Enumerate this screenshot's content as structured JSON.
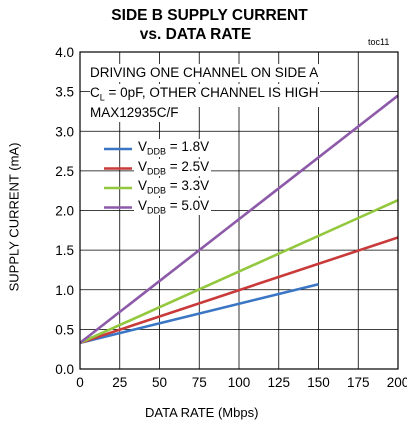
{
  "chart_data": {
    "type": "line",
    "title_line1": "SIDE B SUPPLY CURRENT",
    "title_line2": "vs. DATA RATE",
    "code": "toc11",
    "xlabel": "DATA RATE (Mbps)",
    "ylabel": "SUPPLY CURRENT (mA)",
    "xlim": [
      0,
      200
    ],
    "ylim": [
      0.0,
      4.0
    ],
    "x_ticks": [
      "0",
      "25",
      "50",
      "75",
      "100",
      "125",
      "150",
      "175",
      "200"
    ],
    "y_ticks": [
      "0.0",
      "0.5",
      "1.0",
      "1.5",
      "2.0",
      "2.5",
      "3.0",
      "3.5",
      "4.0"
    ],
    "grid": true,
    "annotation": {
      "line1": "DRIVING ONE CHANNEL ON SIDE A",
      "line2_prefix": "C",
      "line2_sub": "L",
      "line2_suffix": " = 0pF, OTHER CHANNEL IS HIGH",
      "line3": "MAX12935C/F"
    },
    "legend_prefix": "V",
    "legend_sub": "DDB",
    "series": [
      {
        "name": "= 1.8V",
        "color": "#3a76c4",
        "x": [
          0,
          150
        ],
        "y": [
          0.33,
          1.07
        ]
      },
      {
        "name": "= 2.5V",
        "color": "#c93a3a",
        "x": [
          0,
          200
        ],
        "y": [
          0.33,
          1.66
        ]
      },
      {
        "name": "= 3.3V",
        "color": "#93c83e",
        "x": [
          0,
          200
        ],
        "y": [
          0.33,
          2.13
        ]
      },
      {
        "name": "= 5.0V",
        "color": "#8c5aa8",
        "x": [
          0,
          200
        ],
        "y": [
          0.33,
          3.45
        ]
      }
    ]
  }
}
